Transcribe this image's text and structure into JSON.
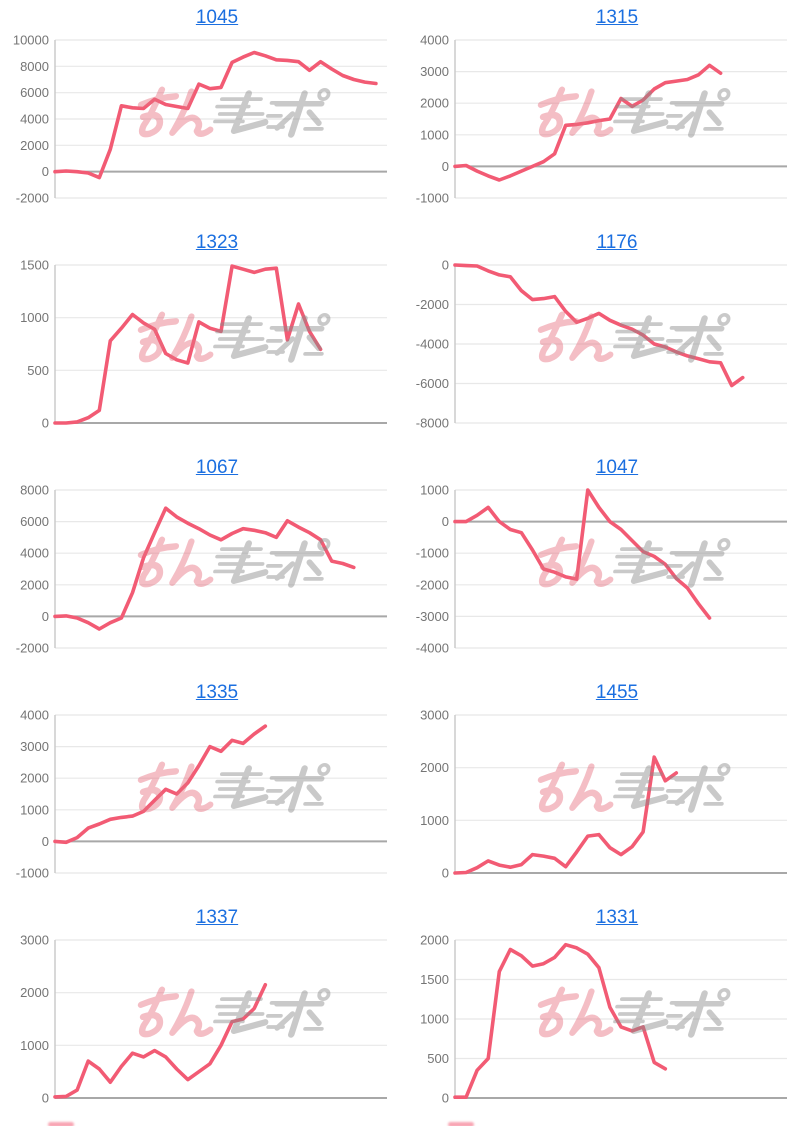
{
  "page": {
    "background": "#FFFFFF"
  },
  "style": {
    "line_color": "#F25B74",
    "title_color": "#1B6FE0",
    "tick_color": "#757575",
    "grid_color": "#E8E8E8",
    "zero_line_color": "#A8A8A8",
    "axis_line_color": "#C8C8C8",
    "watermark_pink": "#E77080",
    "watermark_gray": "#8A8A8A",
    "watermark_opacity": 0.45
  },
  "watermark": {
    "text": "みんレポ"
  },
  "chart_data": [
    {
      "type": "line",
      "title": "1045",
      "xlabel": "",
      "ylabel": "",
      "ylim": [
        -2000,
        10000
      ],
      "ytick_step": 2000,
      "x_slots": 31,
      "grid": true,
      "legend": "none",
      "zero_axis": true,
      "values": [
        0,
        50,
        0,
        -100,
        -450,
        1700,
        5000,
        4850,
        4800,
        5500,
        5100,
        4950,
        4800,
        6650,
        6300,
        6400,
        8300,
        8700,
        9050,
        8800,
        8500,
        8450,
        8350,
        7700,
        8350,
        7800,
        7300,
        7000,
        6800,
        6700
      ]
    },
    {
      "type": "line",
      "title": "1315",
      "xlabel": "",
      "ylabel": "",
      "ylim": [
        -1000,
        4000
      ],
      "ytick_step": 1000,
      "x_slots": 31,
      "grid": true,
      "legend": "none",
      "zero_axis": true,
      "values": [
        0,
        30,
        -150,
        -300,
        -430,
        -300,
        -150,
        0,
        150,
        400,
        1300,
        1330,
        1380,
        1450,
        1500,
        2150,
        1900,
        2100,
        2450,
        2650,
        2700,
        2750,
        2900,
        3200,
        2950
      ]
    },
    {
      "type": "line",
      "title": "1323",
      "xlabel": "",
      "ylabel": "",
      "ylim": [
        0,
        1500
      ],
      "ytick_step": 500,
      "x_slots": 31,
      "grid": true,
      "legend": "none",
      "zero_axis": true,
      "values": [
        0,
        0,
        10,
        50,
        120,
        780,
        900,
        1030,
        950,
        890,
        660,
        600,
        570,
        960,
        900,
        870,
        1490,
        1460,
        1430,
        1460,
        1470,
        790,
        1130,
        870,
        700
      ]
    },
    {
      "type": "line",
      "title": "1176",
      "xlabel": "",
      "ylabel": "",
      "ylim": [
        -8000,
        0
      ],
      "ytick_step": 2000,
      "x_slots": 31,
      "grid": true,
      "legend": "none",
      "zero_axis": false,
      "values": [
        0,
        -30,
        -50,
        -300,
        -500,
        -600,
        -1300,
        -1750,
        -1700,
        -1600,
        -2350,
        -2900,
        -2700,
        -2450,
        -2800,
        -3050,
        -3250,
        -3550,
        -4000,
        -4150,
        -4400,
        -4600,
        -4750,
        -4900,
        -4950,
        -6100,
        -5700
      ]
    },
    {
      "type": "line",
      "title": "1067",
      "xlabel": "",
      "ylabel": "",
      "ylim": [
        -2000,
        8000
      ],
      "ytick_step": 2000,
      "x_slots": 31,
      "grid": true,
      "legend": "none",
      "zero_axis": true,
      "values": [
        0,
        30,
        -100,
        -400,
        -800,
        -400,
        -100,
        1500,
        3700,
        5300,
        6850,
        6300,
        5900,
        5550,
        5150,
        4850,
        5250,
        5550,
        5450,
        5300,
        5000,
        6050,
        5650,
        5300,
        4850,
        3500,
        3350,
        3100
      ]
    },
    {
      "type": "line",
      "title": "1047",
      "xlabel": "",
      "ylabel": "",
      "ylim": [
        -4000,
        1000
      ],
      "ytick_step": 1000,
      "x_slots": 31,
      "grid": true,
      "legend": "none",
      "zero_axis": true,
      "values": [
        0,
        0,
        200,
        450,
        0,
        -250,
        -350,
        -900,
        -1500,
        -1600,
        -1750,
        -1820,
        1000,
        450,
        0,
        -250,
        -600,
        -950,
        -1100,
        -1350,
        -1800,
        -2100,
        -2600,
        -3050
      ]
    },
    {
      "type": "line",
      "title": "1335",
      "xlabel": "",
      "ylabel": "",
      "ylim": [
        -1000,
        4000
      ],
      "ytick_step": 1000,
      "x_slots": 31,
      "grid": true,
      "legend": "none",
      "zero_axis": true,
      "values": [
        0,
        -30,
        120,
        420,
        550,
        700,
        760,
        800,
        950,
        1300,
        1650,
        1500,
        1850,
        2400,
        3000,
        2850,
        3200,
        3100,
        3400,
        3650
      ]
    },
    {
      "type": "line",
      "title": "1455",
      "xlabel": "",
      "ylabel": "",
      "ylim": [
        0,
        3000
      ],
      "ytick_step": 1000,
      "x_slots": 31,
      "grid": true,
      "legend": "none",
      "zero_axis": true,
      "values": [
        0,
        10,
        100,
        230,
        150,
        110,
        160,
        350,
        320,
        280,
        120,
        400,
        700,
        730,
        480,
        350,
        500,
        780,
        2200,
        1750,
        1900
      ]
    },
    {
      "type": "line",
      "title": "1337",
      "xlabel": "",
      "ylabel": "",
      "ylim": [
        0,
        3000
      ],
      "ytick_step": 1000,
      "x_slots": 31,
      "grid": true,
      "legend": "none",
      "zero_axis": true,
      "values": [
        20,
        30,
        150,
        700,
        550,
        300,
        600,
        850,
        780,
        900,
        780,
        550,
        350,
        500,
        650,
        1000,
        1450,
        1500,
        1700,
        2150
      ]
    },
    {
      "type": "line",
      "title": "1331",
      "xlabel": "",
      "ylabel": "",
      "ylim": [
        0,
        2000
      ],
      "ytick_step": 500,
      "x_slots": 31,
      "grid": true,
      "legend": "none",
      "zero_axis": true,
      "values": [
        10,
        10,
        350,
        500,
        1600,
        1880,
        1800,
        1670,
        1700,
        1780,
        1940,
        1900,
        1820,
        1650,
        1150,
        900,
        850,
        900,
        450,
        370
      ]
    }
  ]
}
